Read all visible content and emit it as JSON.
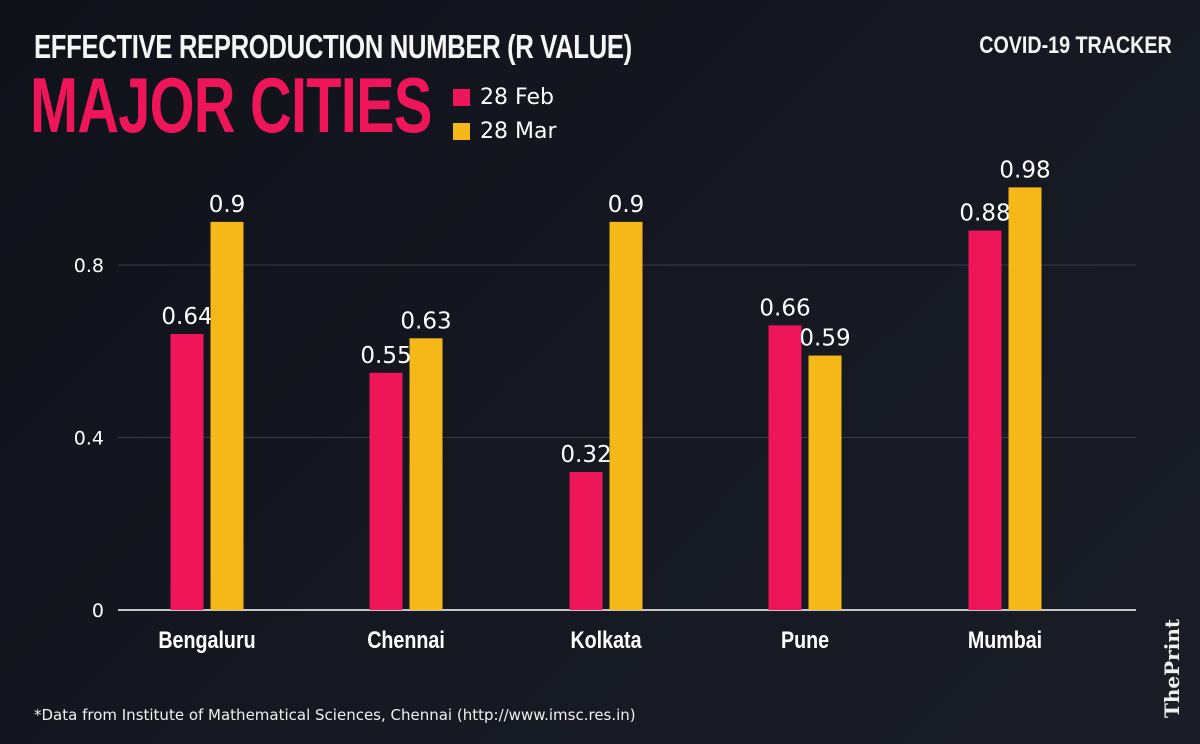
{
  "header": {
    "title": "EFFECTIVE REPRODUCTION NUMBER (R VALUE)",
    "subtitle": "MAJOR CITIES",
    "tracker": "COVID-19 TRACKER"
  },
  "legend": [
    {
      "label": "28 Feb",
      "color": "#ee1659"
    },
    {
      "label": "28 Mar",
      "color": "#f5b818"
    }
  ],
  "footnote": "*Data from Institute of Mathematical Sciences, Chennai (http://www.imsc.res.in)",
  "brand": "ThePrint",
  "chart_data": {
    "type": "bar",
    "title": "EFFECTIVE REPRODUCTION NUMBER (R VALUE) — MAJOR CITIES",
    "xlabel": "",
    "ylabel": "",
    "categories": [
      "Bengaluru",
      "Chennai",
      "Kolkata",
      "Pune",
      "Mumbai"
    ],
    "series": [
      {
        "name": "28 Feb",
        "color": "#ee1659",
        "values": [
          0.64,
          0.55,
          0.32,
          0.66,
          0.88
        ],
        "labels": [
          "0.64",
          "0.55",
          "0.32",
          "0.66",
          "0.88"
        ]
      },
      {
        "name": "28 Mar",
        "color": "#f5b818",
        "values": [
          0.9,
          0.63,
          0.9,
          0.59,
          0.98
        ],
        "labels": [
          "0.9",
          "0.63",
          "0.9",
          "0.59",
          "0.98"
        ]
      }
    ],
    "yticks": [
      0,
      0.4,
      0.8
    ],
    "ytick_labels": [
      "0",
      "0.4",
      "0.8"
    ],
    "ylim": [
      0,
      1.0
    ],
    "grid": true,
    "legend_position": "top-left"
  }
}
